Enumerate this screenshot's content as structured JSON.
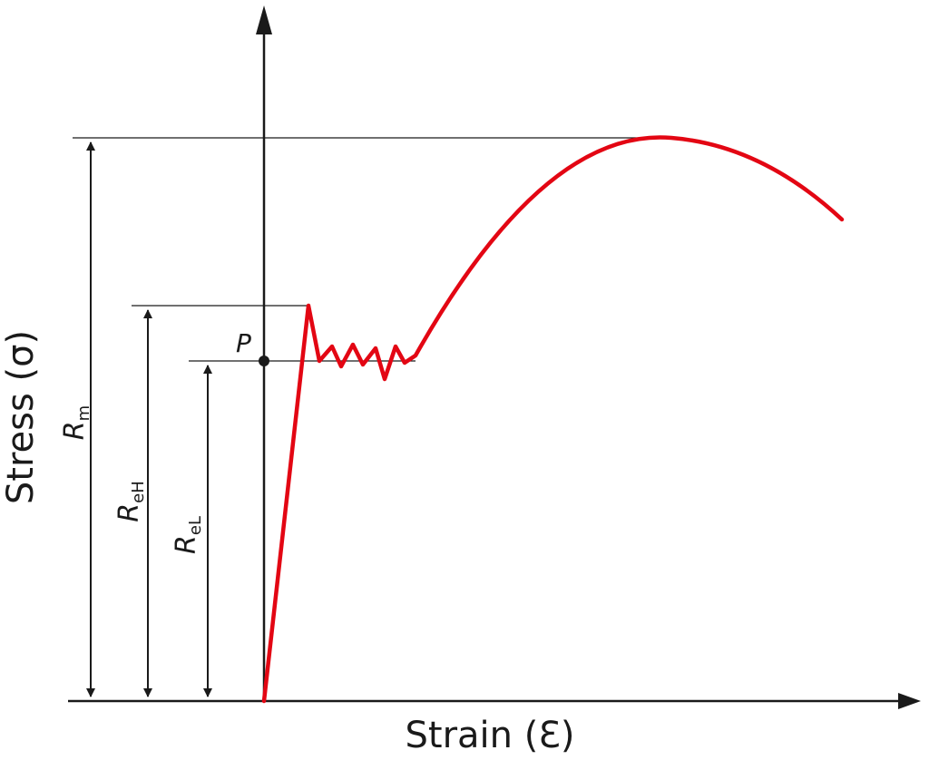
{
  "axes": {
    "x_title": "Strain (Ɛ)",
    "y_title": "Stress (σ)"
  },
  "markers": {
    "rm": {
      "main": "R",
      "sub": "m"
    },
    "reh": {
      "main": "R",
      "sub": "eH"
    },
    "rel": {
      "main": "R",
      "sub": "eL"
    },
    "point": "P"
  },
  "colors": {
    "curve": "#e30613",
    "lines": "#1a1a1a"
  }
}
